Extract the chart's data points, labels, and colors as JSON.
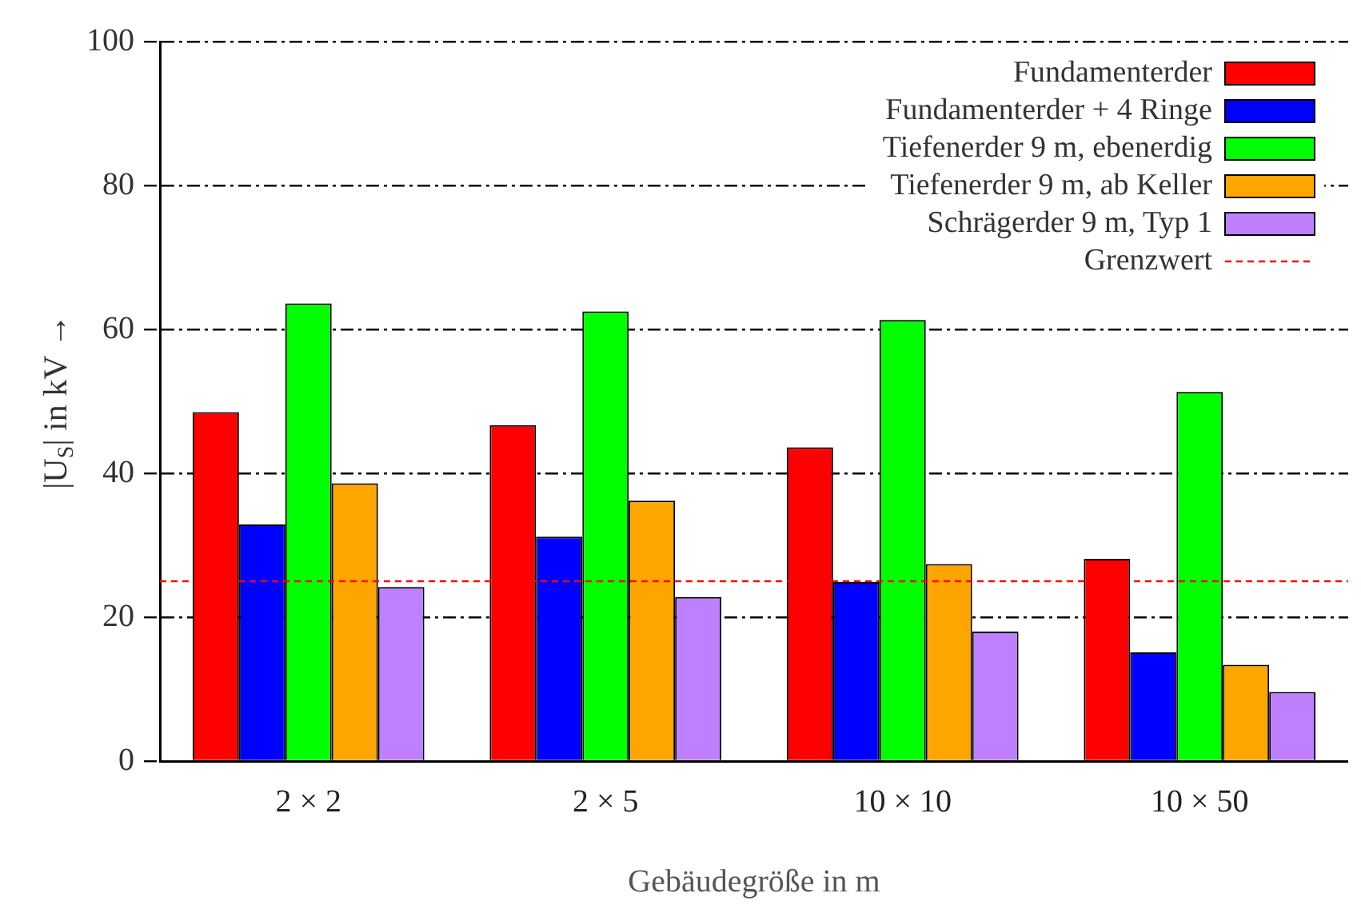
{
  "chart_data": {
    "type": "bar",
    "xlabel": "Gebäudegröße in m",
    "ylabel": "|U$_{S}$| in kV →",
    "categories": [
      "2 × 2",
      "2 × 5",
      "10 × 10",
      "10 × 50"
    ],
    "series": [
      {
        "name": "Fundamenterder",
        "color": "#ff0000",
        "values": [
          48.5,
          46.7,
          43.6,
          28.1
        ]
      },
      {
        "name": "Fundamenterder + 4 Ringe",
        "color": "#0000ff",
        "values": [
          32.9,
          31.2,
          24.9,
          15.1
        ]
      },
      {
        "name": "Tiefenerder 9 m, ebenerdig",
        "color": "#00ff00",
        "values": [
          63.6,
          62.5,
          61.3,
          51.3
        ]
      },
      {
        "name": "Tiefenerder 9 m, ab Keller",
        "color": "#ffa500",
        "values": [
          38.6,
          36.2,
          27.4,
          13.4
        ]
      },
      {
        "name": "Schrägerder 9 m, Typ 1",
        "color": "#bf80ff",
        "values": [
          24.2,
          22.8,
          18.0,
          9.6
        ]
      }
    ],
    "ref_lines": [
      {
        "axis": "y",
        "value": 25,
        "label": "Grenzwert",
        "color": "#ff0000",
        "line_style": "dashed"
      }
    ],
    "ylim": [
      0,
      100
    ],
    "yticks": [
      0,
      20,
      40,
      60,
      80,
      100
    ],
    "grid": "y",
    "legend": "top right"
  }
}
